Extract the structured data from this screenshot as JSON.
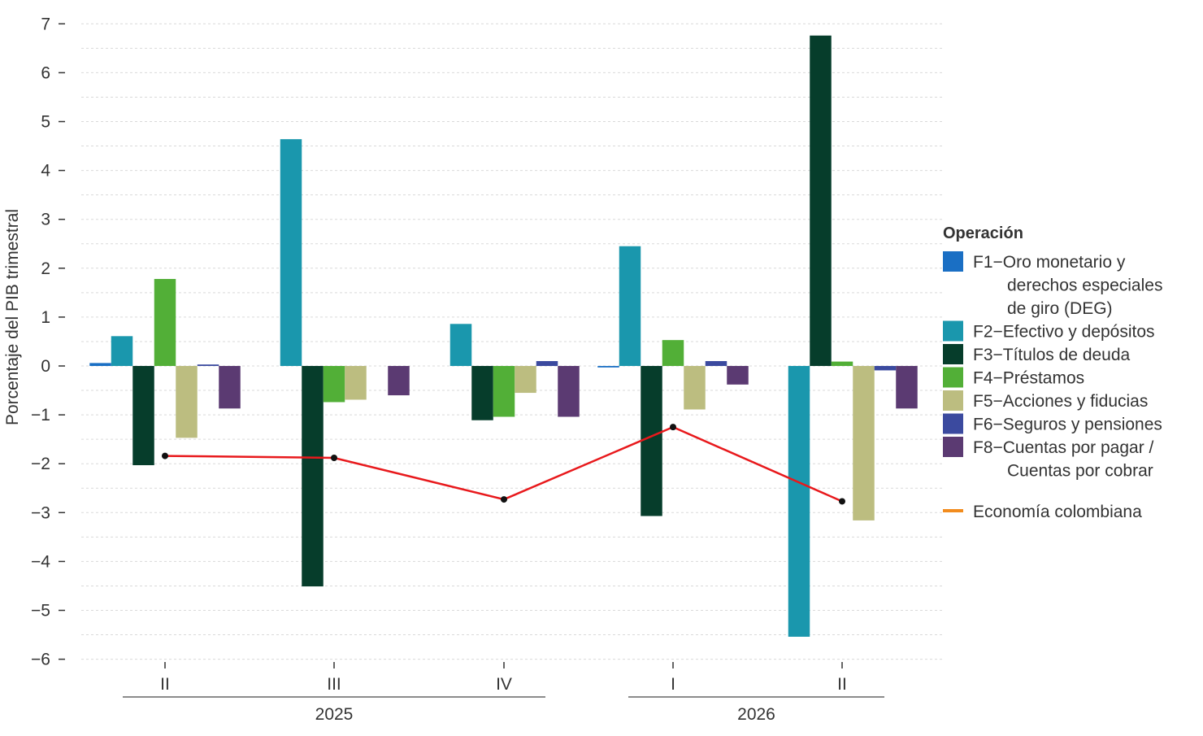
{
  "chart_data": {
    "type": "bar",
    "ylabel": "Porcentaje del PIB trimestral",
    "xlabel": "",
    "ylim": [
      -6,
      7
    ],
    "yticks": [
      7,
      6,
      5,
      4,
      3,
      2,
      1,
      0,
      -1,
      -2,
      -3,
      -4,
      -5,
      -6
    ],
    "ytick_labels": [
      "7",
      "6",
      "5",
      "4",
      "3",
      "2",
      "1",
      "0",
      "−1",
      "−2",
      "−3",
      "−4",
      "−5",
      "−6"
    ],
    "grid": "horizontal dashed, every 0.5",
    "categories": [
      "II",
      "III",
      "IV",
      "I",
      "II"
    ],
    "year_groups": [
      {
        "label": "2025",
        "categories": [
          "II",
          "III",
          "IV"
        ]
      },
      {
        "label": "2026",
        "categories": [
          "I",
          "II"
        ]
      }
    ],
    "legend": {
      "title": "Operación",
      "placement": "right"
    },
    "series": [
      {
        "code": "F1",
        "desc": "Oro monetario y derechos especiales de giro (DEG)",
        "desc_lines": [
          "Oro monetario y",
          "derechos especiales",
          "de giro (DEG)"
        ],
        "color": "#1a6fc4",
        "values": [
          0.06,
          0.0,
          0.0,
          -0.03,
          0.0
        ]
      },
      {
        "code": "F2",
        "desc": "Efectivo y depósitos",
        "desc_lines": [
          "Efectivo y depósitos"
        ],
        "color": "#1a97ad",
        "values": [
          0.61,
          4.64,
          0.86,
          2.45,
          -5.54
        ]
      },
      {
        "code": "F3",
        "desc": "Títulos de deuda",
        "desc_lines": [
          "Títulos de deuda"
        ],
        "color": "#063d2b",
        "values": [
          -2.03,
          -4.51,
          -1.11,
          -3.07,
          6.76
        ]
      },
      {
        "code": "F4",
        "desc": "Préstamos",
        "desc_lines": [
          "Préstamos"
        ],
        "color": "#52af37",
        "values": [
          1.78,
          -0.74,
          -1.04,
          0.53,
          0.09
        ]
      },
      {
        "code": "F5",
        "desc": "Acciones y fiducias",
        "desc_lines": [
          "Acciones y fiducias"
        ],
        "color": "#bcbd80",
        "values": [
          -1.47,
          -0.69,
          -0.55,
          -0.89,
          -3.16
        ]
      },
      {
        "code": "F6",
        "desc": "Seguros y pensiones",
        "desc_lines": [
          "Seguros y pensiones"
        ],
        "color": "#3b4a9f",
        "values": [
          0.03,
          0.0,
          0.1,
          0.1,
          -0.09
        ]
      },
      {
        "code": "F8",
        "desc": "Cuentas por pagar / Cuentas por cobrar",
        "desc_lines": [
          "Cuentas por pagar /",
          "Cuentas por cobrar"
        ],
        "color": "#5b3a72",
        "values": [
          -0.87,
          -0.6,
          -1.04,
          -0.38,
          -0.87
        ]
      }
    ],
    "line": {
      "name": "Economía colombiana",
      "legend_color": "#f28c1e",
      "color": "#e8191c",
      "marker_color": "#111111",
      "values": [
        -1.84,
        -1.88,
        -2.73,
        -1.25,
        -2.77
      ]
    }
  }
}
